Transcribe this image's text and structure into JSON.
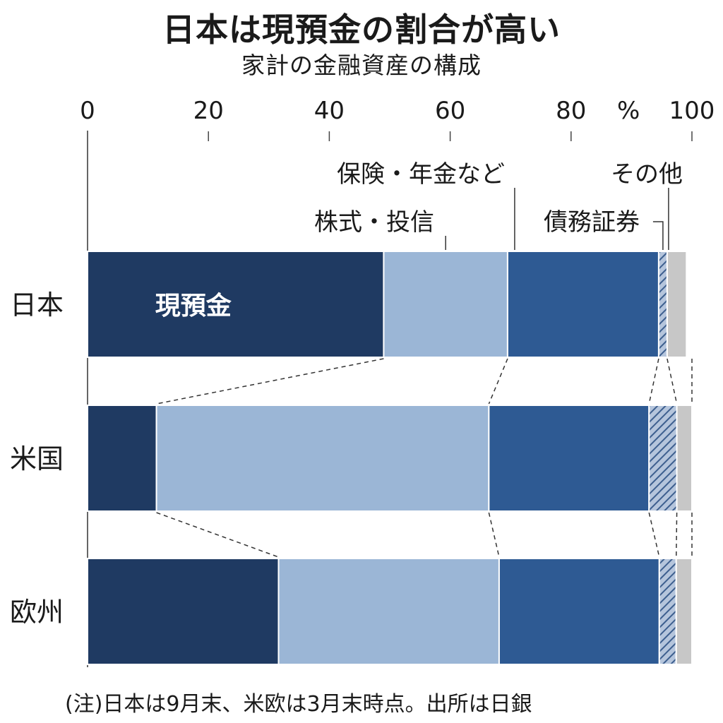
{
  "title": "日本は現預金の割合が高い",
  "subtitle": "家計の金融資産の構成",
  "note": "(注)日本は9月末、米欧は3月末時点。出所は日銀",
  "chart_data": {
    "type": "bar",
    "stacked": true,
    "orientation": "horizontal",
    "unit": "%",
    "xlim": [
      0,
      100
    ],
    "x_ticks": [
      "0",
      "20",
      "40",
      "60",
      "80",
      "100"
    ],
    "categories": [
      "日本",
      "米国",
      "欧州"
    ],
    "series": [
      {
        "name": "現預金",
        "values": [
          49.0,
          11.4,
          31.6
        ],
        "color": "#1f3a62"
      },
      {
        "name": "株式・投信",
        "values": [
          20.5,
          55.0,
          36.5
        ],
        "color": "#9bb6d6"
      },
      {
        "name": "保険・年金など",
        "values": [
          25.0,
          26.5,
          26.5
        ],
        "color": "#2e5a93"
      },
      {
        "name": "債務証券",
        "values": [
          1.4,
          4.6,
          2.8
        ],
        "color": "#8fa6c8"
      },
      {
        "name": "その他",
        "values": [
          3.2,
          2.5,
          2.6
        ],
        "color": "#c7c7c7"
      }
    ]
  }
}
